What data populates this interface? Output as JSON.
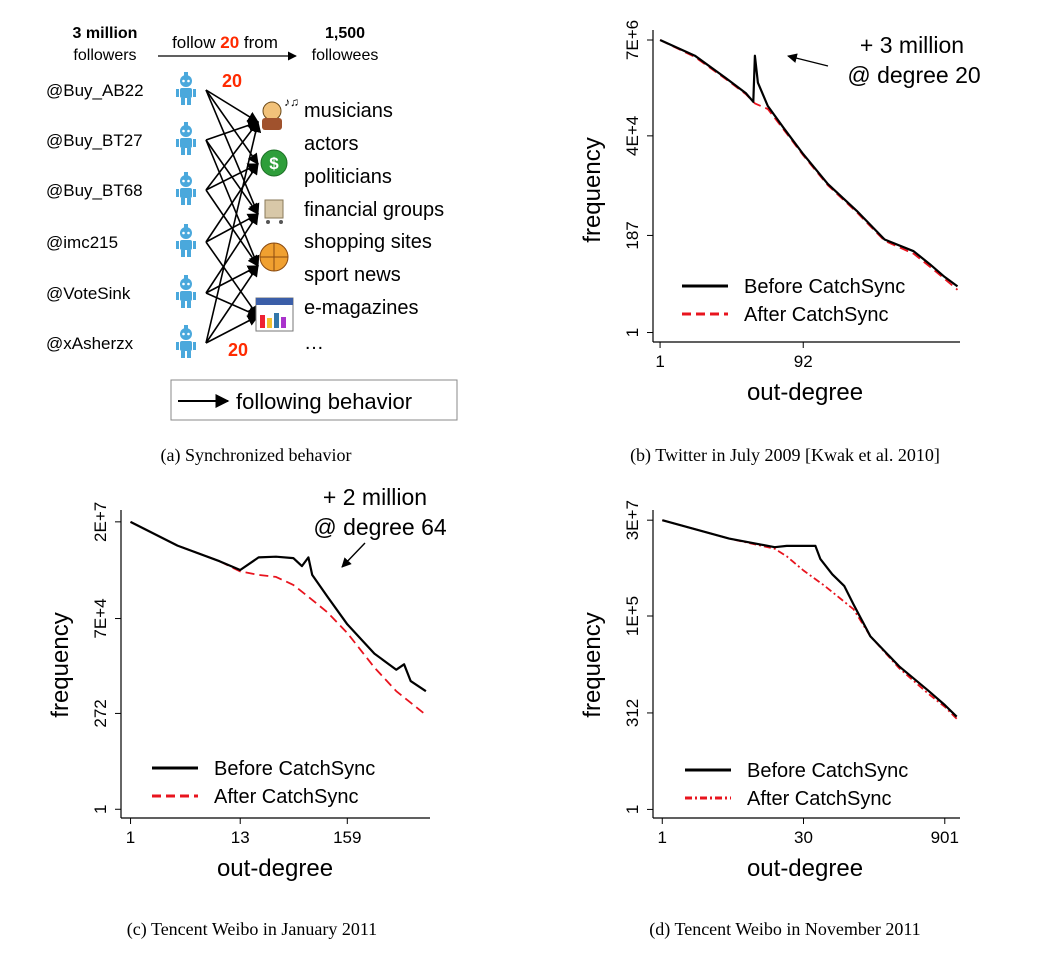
{
  "panel_a": {
    "followers_count": "3 million",
    "followers_word": "followers",
    "follow_prefix": "follow",
    "follow_number": "20",
    "follow_suffix": "from",
    "followees_count": "1,500",
    "followees_word": "followees",
    "accounts": [
      "@Buy_AB22",
      "@Buy_BT27",
      "@Buy_BT68",
      "@imc215",
      "@VoteSink",
      "@xAsherzx"
    ],
    "top_count": "20",
    "bottom_count": "20",
    "categories": [
      "musicians",
      "actors",
      "politicians",
      "financial groups",
      "shopping sites",
      "sport news",
      "e-magazines",
      "…"
    ],
    "legend_label": "following behavior",
    "caption": "(a) Synchronized behavior",
    "colors": {
      "accent": "#ff2a00",
      "robot": "#4aa8dc"
    }
  },
  "chart_data": [
    {
      "id": "b",
      "type": "line",
      "caption": "(b) Twitter in July 2009 [Kwak et al. 2010]",
      "xlabel": "out-degree",
      "ylabel": "frequency",
      "x_ticks": [
        "1",
        "92"
      ],
      "y_ticks": [
        "1",
        "187",
        "4E+4",
        "7E+6"
      ],
      "scale": "log-log",
      "annotation": [
        "+ 3 million",
        "@ degree 20"
      ],
      "legend": {
        "position": "bottom-left",
        "entries": [
          "Before CatchSync",
          "After CatchSync"
        ]
      },
      "series": [
        {
          "name": "Before CatchSync",
          "color": "#000000",
          "style": "solid",
          "points": [
            [
              1,
              7000000
            ],
            [
              3,
              3000000
            ],
            [
              8,
              900000
            ],
            [
              15,
              400000
            ],
            [
              19,
              250000
            ],
            [
              20,
              3000000
            ],
            [
              22,
              700000
            ],
            [
              30,
              200000
            ],
            [
              50,
              60000
            ],
            [
              92,
              15000
            ],
            [
              200,
              3000
            ],
            [
              500,
              700
            ],
            [
              1200,
              150
            ],
            [
              3000,
              80
            ],
            [
              5000,
              40
            ],
            [
              8000,
              20
            ],
            [
              12000,
              12
            ]
          ]
        },
        {
          "name": "After CatchSync",
          "color": "#e8141e",
          "style": "dashed",
          "points": [
            [
              1,
              7000000
            ],
            [
              3,
              2800000
            ],
            [
              8,
              850000
            ],
            [
              15,
              380000
            ],
            [
              20,
              230000
            ],
            [
              30,
              170000
            ],
            [
              50,
              55000
            ],
            [
              92,
              14000
            ],
            [
              200,
              2800
            ],
            [
              500,
              650
            ],
            [
              1200,
              140
            ],
            [
              3000,
              70
            ],
            [
              5000,
              35
            ],
            [
              8000,
              18
            ],
            [
              12000,
              10
            ]
          ]
        }
      ]
    },
    {
      "id": "c",
      "type": "line",
      "caption": "(c) Tencent Weibo in January 2011",
      "xlabel": "out-degree",
      "ylabel": "frequency",
      "x_ticks": [
        "1",
        "13",
        "159"
      ],
      "y_ticks": [
        "1",
        "272",
        "7E+4",
        "2E+7"
      ],
      "scale": "log-log",
      "annotation": [
        "+ 2 million",
        "@ degree 64"
      ],
      "legend": {
        "position": "bottom-left",
        "entries": [
          "Before CatchSync",
          "After CatchSync"
        ]
      },
      "series": [
        {
          "name": "Before CatchSync",
          "color": "#000000",
          "style": "solid",
          "points": [
            [
              1,
              20000000
            ],
            [
              3,
              5000000
            ],
            [
              8,
              2000000
            ],
            [
              13,
              1200000
            ],
            [
              20,
              2500000
            ],
            [
              30,
              2600000
            ],
            [
              45,
              2400000
            ],
            [
              55,
              1500000
            ],
            [
              64,
              2500000
            ],
            [
              70,
              900000
            ],
            [
              100,
              250000
            ],
            [
              159,
              50000
            ],
            [
              300,
              9000
            ],
            [
              500,
              3500
            ],
            [
              600,
              4800
            ],
            [
              700,
              1800
            ],
            [
              1000,
              1000
            ]
          ]
        },
        {
          "name": "After CatchSync",
          "color": "#e8141e",
          "style": "dashed",
          "points": [
            [
              1,
              20000000
            ],
            [
              3,
              5000000
            ],
            [
              8,
              2000000
            ],
            [
              13,
              1100000
            ],
            [
              20,
              900000
            ],
            [
              30,
              800000
            ],
            [
              45,
              500000
            ],
            [
              64,
              250000
            ],
            [
              100,
              100000
            ],
            [
              159,
              30000
            ],
            [
              300,
              4000
            ],
            [
              500,
              1000
            ],
            [
              1000,
              250
            ]
          ]
        }
      ]
    },
    {
      "id": "d",
      "type": "line",
      "caption": "(d) Tencent Weibo in November 2011",
      "xlabel": "out-degree",
      "ylabel": "frequency",
      "x_ticks": [
        "1",
        "30",
        "901"
      ],
      "y_ticks": [
        "1",
        "312",
        "1E+5",
        "3E+7"
      ],
      "scale": "log-log",
      "legend": {
        "position": "bottom-left",
        "entries": [
          "Before CatchSync",
          "After CatchSync"
        ]
      },
      "series": [
        {
          "name": "Before CatchSync",
          "color": "#000000",
          "style": "solid",
          "points": [
            [
              1,
              30000000
            ],
            [
              5,
              10000000
            ],
            [
              15,
              6000000
            ],
            [
              20,
              6500000
            ],
            [
              30,
              6500000
            ],
            [
              40,
              6500000
            ],
            [
              45,
              3000000
            ],
            [
              60,
              1200000
            ],
            [
              80,
              600000
            ],
            [
              100,
              200000
            ],
            [
              150,
              30000
            ],
            [
              300,
              5000
            ],
            [
              600,
              1200
            ],
            [
              901,
              500
            ],
            [
              1200,
              250
            ]
          ]
        },
        {
          "name": "After CatchSync",
          "color": "#e8141e",
          "style": "dashdot",
          "points": [
            [
              1,
              30000000
            ],
            [
              5,
              10000000
            ],
            [
              15,
              5500000
            ],
            [
              20,
              3500000
            ],
            [
              30,
              1500000
            ],
            [
              50,
              600000
            ],
            [
              100,
              150000
            ],
            [
              150,
              30000
            ],
            [
              300,
              4500
            ],
            [
              600,
              1000
            ],
            [
              901,
              450
            ],
            [
              1200,
              220
            ]
          ]
        }
      ]
    }
  ]
}
